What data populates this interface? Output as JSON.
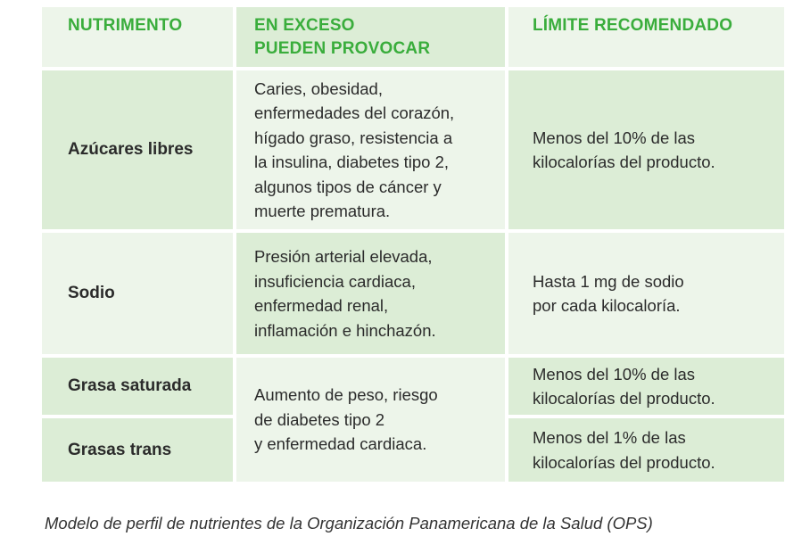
{
  "table": {
    "headers": [
      "NUTRIMENTO",
      "EN EXCESO\nPUEDEN PROVOCAR",
      "LÍMITE RECOMENDADO"
    ],
    "rows": [
      {
        "nutrient": "Azúcares libres",
        "effects": "Caries, obesidad,\nenfermedades del corazón,\nhígado graso, resistencia a\nla insulina, diabetes tipo 2,\nalgunos tipos de cáncer y\nmuerte prematura.",
        "limit": "Menos del 10% de las\nkilocalorías del producto."
      },
      {
        "nutrient": "Sodio",
        "effects": "Presión arterial elevada,\ninsuficiencia cardiaca,\nenfermedad renal,\ninflamación e hinchazón.",
        "limit": "Hasta 1 mg de sodio\npor cada kilocaloría."
      },
      {
        "nutrient": "Grasa saturada",
        "limit": "Menos del 10% de las\nkilocalorías del producto."
      },
      {
        "nutrient": "Grasas trans",
        "limit": "Menos del 1% de las\nkilocalorías del producto."
      }
    ],
    "shared_effects_fats": "Aumento de peso, riesgo\nde diabetes tipo 2\ny enfermedad cardiaca."
  },
  "caption": "Modelo de perfil de nutrientes de la Organización Panamericana de la Salud (OPS)",
  "colors": {
    "header_text": "#3aad3c",
    "cell_light": "#edf5ea",
    "cell_mid": "#dcedd6"
  }
}
